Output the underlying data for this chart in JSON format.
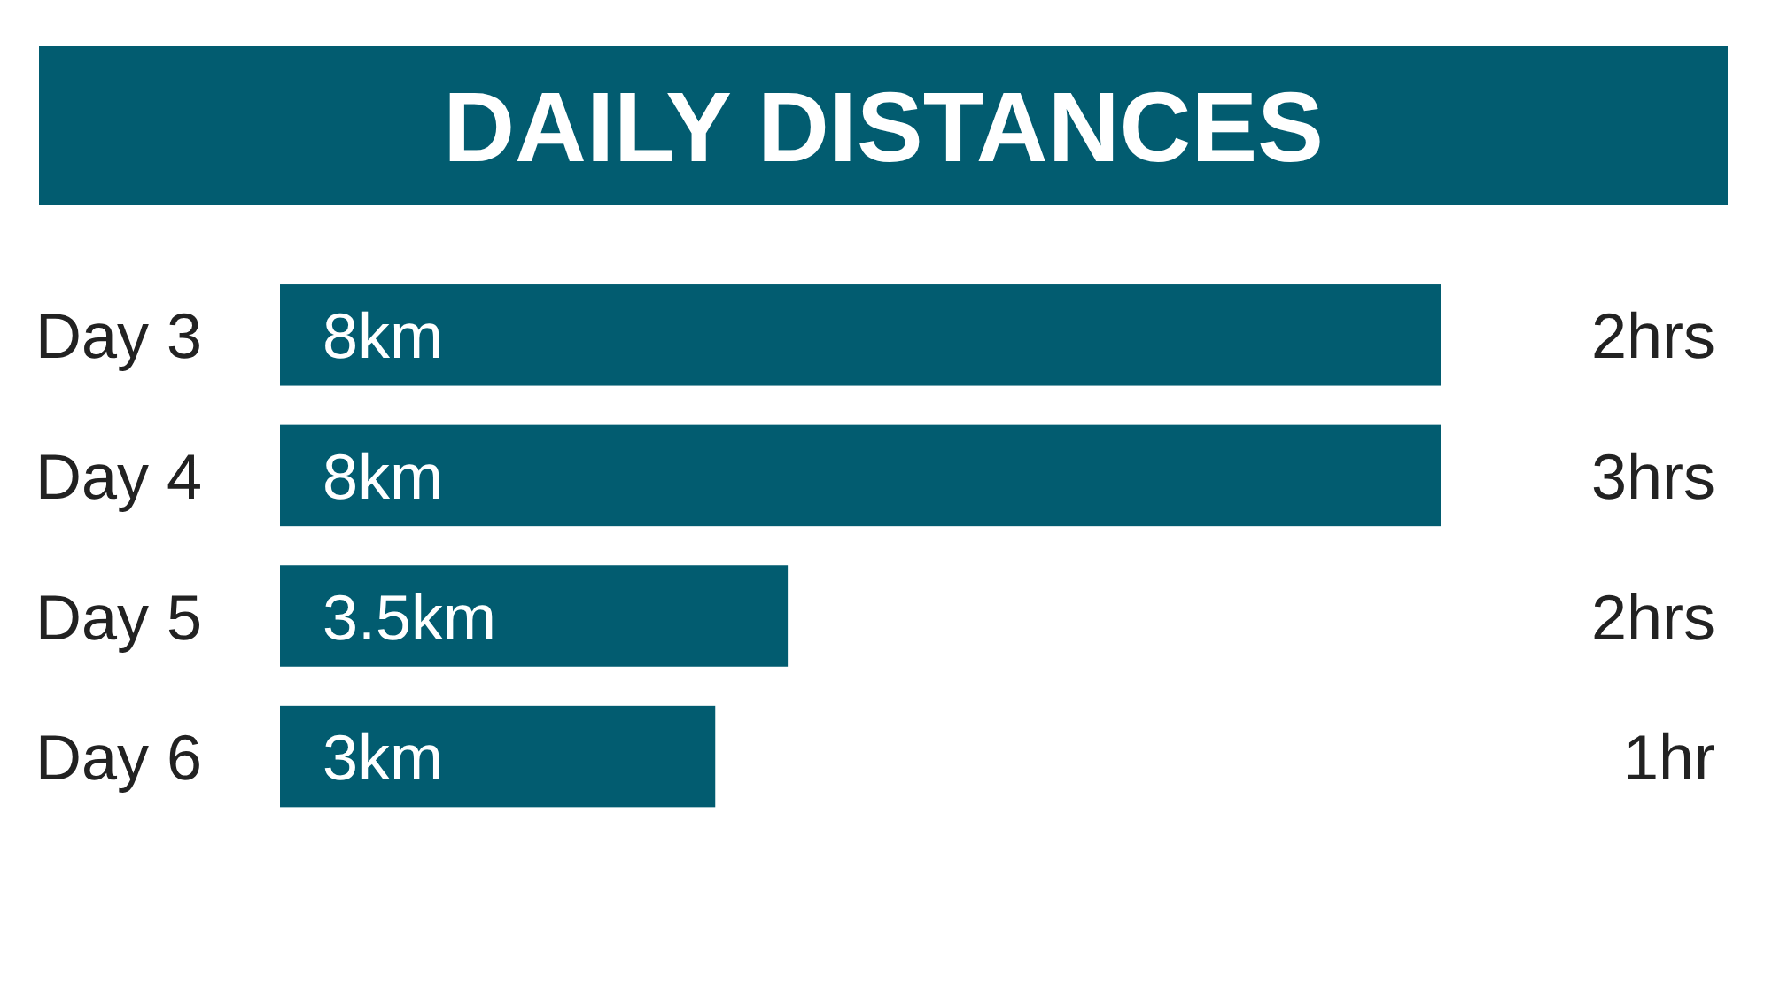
{
  "chart_data": {
    "type": "bar",
    "orientation": "horizontal",
    "title": "DAILY DISTANCES",
    "categories": [
      "Day 3",
      "Day 4",
      "Day 5",
      "Day 6"
    ],
    "values": [
      8,
      8,
      3.5,
      3
    ],
    "value_labels": [
      "8km",
      "8km",
      "3.5km",
      "3km"
    ],
    "color": "#025c70",
    "annotations": [
      "2hrs",
      "3hrs",
      "2hrs",
      "1hr"
    ]
  }
}
